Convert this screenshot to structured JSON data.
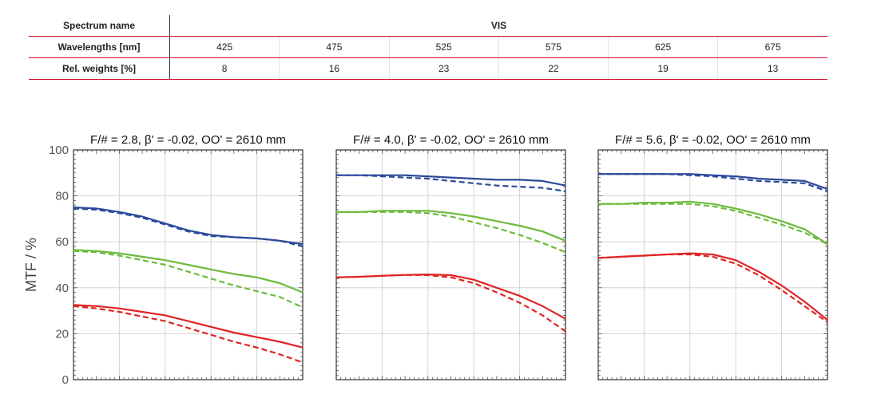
{
  "table": {
    "spectrum_label": "Spectrum name",
    "spectrum_value": "VIS",
    "wavelengths_label": "Wavelengths [nm]",
    "wavelengths": [
      "425",
      "475",
      "525",
      "575",
      "625",
      "675"
    ],
    "weights_label": "Rel. weights [%]",
    "weights": [
      "8",
      "16",
      "23",
      "22",
      "19",
      "13"
    ]
  },
  "chart_data": {
    "type": "line",
    "ylabel": "MTF / %",
    "ylim": [
      0,
      100
    ],
    "yticks": [
      "0",
      "20",
      "40",
      "60",
      "80",
      "100"
    ],
    "x": [
      0,
      1,
      2,
      3,
      4,
      5,
      6,
      7,
      8,
      9,
      10
    ],
    "grid": true,
    "colors": {
      "blue": "#2b4a9a",
      "green": "#6cbb3c",
      "red": "#e02424"
    },
    "panels": [
      {
        "title": "F/# = 2.8, β' = -0.02, OO' = 2610 mm",
        "series": [
          {
            "color": "blue",
            "style": "solid",
            "values": [
              75,
              74.5,
              73,
              71,
              68,
              65,
              63,
              62,
              61.5,
              60.5,
              59
            ]
          },
          {
            "color": "blue",
            "style": "dashed",
            "values": [
              74.5,
              74,
              72.5,
              70.5,
              67.5,
              64.5,
              62.5,
              62,
              61.5,
              60.5,
              58
            ]
          },
          {
            "color": "green",
            "style": "solid",
            "values": [
              56.5,
              56,
              55,
              53.5,
              52,
              50,
              48,
              46,
              44.5,
              42,
              38
            ]
          },
          {
            "color": "green",
            "style": "dashed",
            "values": [
              56,
              55.5,
              54,
              52,
              50,
              47,
              44,
              41,
              38.5,
              36,
              31.5
            ]
          },
          {
            "color": "red",
            "style": "solid",
            "values": [
              32.5,
              32,
              31,
              29.5,
              28,
              25.5,
              23,
              20.5,
              18.5,
              16.5,
              14
            ]
          },
          {
            "color": "red",
            "style": "dashed",
            "values": [
              32,
              31,
              29.5,
              27.5,
              25.5,
              22.5,
              19.5,
              16.5,
              14,
              11,
              7.5
            ]
          }
        ]
      },
      {
        "title": "F/# = 4.0, β' = -0.02, OO' = 2610 mm",
        "series": [
          {
            "color": "blue",
            "style": "solid",
            "values": [
              89,
              89,
              89,
              89,
              88.5,
              88,
              87.5,
              87,
              87,
              86.5,
              84.5
            ]
          },
          {
            "color": "blue",
            "style": "dashed",
            "values": [
              89,
              89,
              88.5,
              88,
              87.5,
              86.5,
              85.5,
              84.5,
              84,
              83.5,
              82
            ]
          },
          {
            "color": "green",
            "style": "solid",
            "values": [
              73,
              73,
              73.5,
              73.5,
              73.5,
              72.5,
              71,
              69,
              67,
              64.5,
              60.5
            ]
          },
          {
            "color": "green",
            "style": "dashed",
            "values": [
              73,
              73,
              73,
              73,
              72.5,
              71,
              68.5,
              66,
              63,
              59.5,
              55.5
            ]
          },
          {
            "color": "red",
            "style": "solid",
            "values": [
              44.5,
              44.8,
              45.2,
              45.6,
              45.8,
              45.5,
              43.5,
              40,
              36.5,
              32,
              26.5
            ]
          },
          {
            "color": "red",
            "style": "dashed",
            "values": [
              44.5,
              44.8,
              45.2,
              45.6,
              45.5,
              44.5,
              42,
              38,
              33.5,
              28,
              21
            ]
          }
        ]
      },
      {
        "title": "F/# = 5.6, β' = -0.02, OO' = 2610 mm",
        "series": [
          {
            "color": "blue",
            "style": "solid",
            "values": [
              89.5,
              89.5,
              89.5,
              89.5,
              89.5,
              89,
              88.5,
              87.5,
              87,
              86.5,
              83
            ]
          },
          {
            "color": "blue",
            "style": "dashed",
            "values": [
              89.5,
              89.5,
              89.5,
              89.5,
              89,
              88.5,
              87.5,
              86.5,
              86,
              85.5,
              82
            ]
          },
          {
            "color": "green",
            "style": "solid",
            "values": [
              76.5,
              76.5,
              77,
              77,
              77.5,
              76.5,
              74.5,
              72,
              69,
              65.5,
              59
            ]
          },
          {
            "color": "green",
            "style": "dashed",
            "values": [
              76.5,
              76.5,
              76.5,
              76.5,
              76.5,
              75.5,
              73.5,
              70.5,
              67.5,
              64,
              59
            ]
          },
          {
            "color": "red",
            "style": "solid",
            "values": [
              53,
              53.5,
              54,
              54.5,
              55,
              54.5,
              52,
              47,
              41,
              34,
              26
            ]
          },
          {
            "color": "red",
            "style": "dashed",
            "values": [
              53,
              53.5,
              54,
              54.5,
              54.5,
              53.5,
              50.5,
              45.5,
              39,
              32,
              25
            ]
          }
        ]
      }
    ]
  }
}
